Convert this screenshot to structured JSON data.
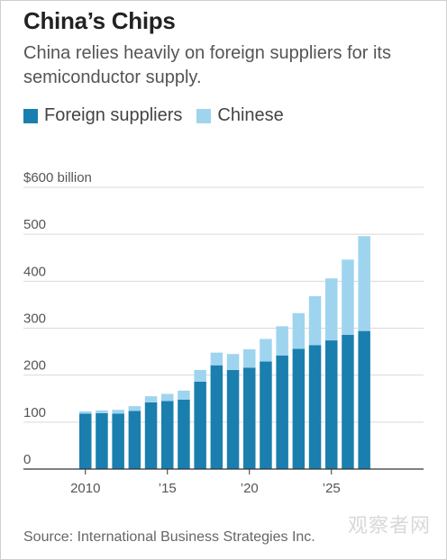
{
  "title": "China’s Chips",
  "subtitle": "China relies heavily on foreign suppliers for its semiconductor supply.",
  "legend": {
    "foreign": "Foreign suppliers",
    "chinese": "Chinese"
  },
  "source": "Source: International Business Strategies Inc.",
  "watermark": "观察者网",
  "colors": {
    "foreign": "#1a7fae",
    "chinese": "#9fd4ef",
    "grid": "#d9d9d9",
    "axis": "#333333"
  },
  "chart_data": {
    "type": "bar",
    "stacked": true,
    "categories": [
      2010,
      2011,
      2012,
      2013,
      2014,
      2015,
      2016,
      2017,
      2018,
      2019,
      2020,
      2021,
      2022,
      2023,
      2024,
      2025,
      2026,
      2027
    ],
    "x_tick_labels": [
      "2010",
      "’15",
      "’20",
      "’25"
    ],
    "x_tick_categories": [
      2010,
      2015,
      2020,
      2025
    ],
    "series": [
      {
        "name": "Foreign suppliers",
        "values": [
          118,
          119,
          118,
          124,
          142,
          145,
          148,
          186,
          221,
          211,
          216,
          229,
          242,
          256,
          264,
          274,
          286,
          294
        ]
      },
      {
        "name": "Chinese",
        "values": [
          5,
          6,
          8,
          10,
          13,
          15,
          19,
          25,
          27,
          34,
          39,
          48,
          62,
          76,
          104,
          132,
          160,
          202
        ]
      }
    ],
    "y_tick_labels": [
      "$600 billion",
      "500",
      "400",
      "300",
      "200",
      "100",
      "0"
    ],
    "y_tick_values": [
      600,
      500,
      400,
      300,
      200,
      100,
      0
    ],
    "ylim": [
      0,
      600
    ],
    "grid": true,
    "legend_position": "top-left"
  }
}
